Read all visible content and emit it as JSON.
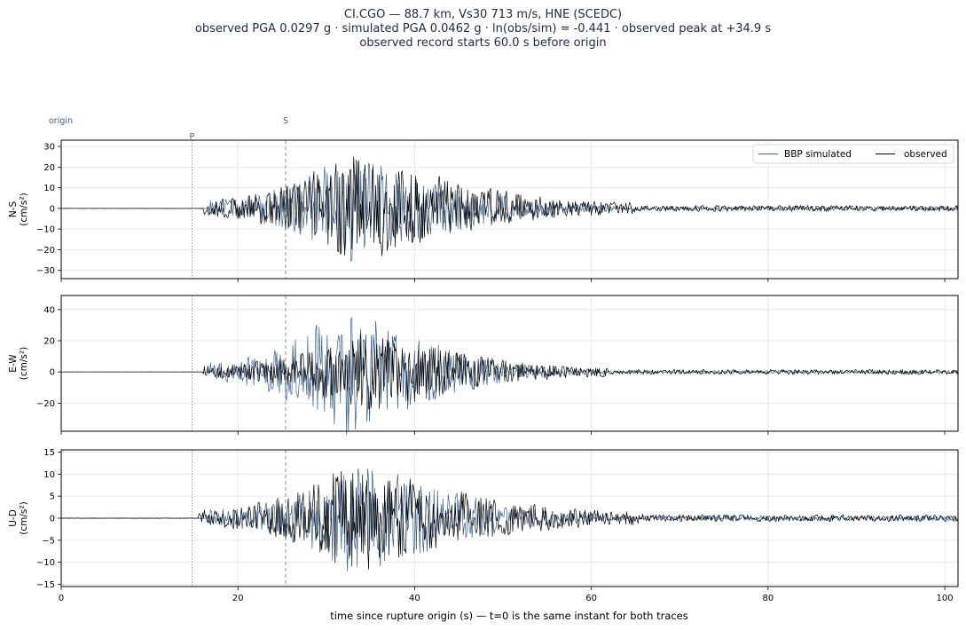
{
  "figure": {
    "title_lines": [
      "CI.CGO  —  88.7 km, Vs30 713 m/s, HNE (SCEDC)",
      "observed PGA 0.0297 g   ·   simulated PGA 0.0462 g   ·   ln(obs/sim) = -0.441   ·   observed peak at +34.9 s",
      "observed record starts 60.0 s before origin"
    ],
    "xlabel": "time since rupture origin (s)   —   t=0 is the same instant for both traces",
    "phase_labels": {
      "origin": "origin",
      "p": "P",
      "s": "S"
    }
  },
  "colors": {
    "simulated": "#3b5f8a",
    "observed": "#000000",
    "grid": "#e4e4e4",
    "marker": "#7a8fb8"
  },
  "chart_data": [
    {
      "type": "line",
      "component": "N-S",
      "ylabel_lines": [
        "N-S",
        "(cm/s²)"
      ],
      "xlim": [
        0,
        101.5
      ],
      "ylim": [
        -34,
        33
      ],
      "xticks": [
        0,
        20,
        40,
        60,
        80,
        100
      ],
      "yticks": [
        -30,
        -20,
        -10,
        0,
        10,
        20,
        30
      ],
      "show_xtick_labels": false,
      "grid": true,
      "legend": "top-right",
      "markers": {
        "origin": 0,
        "p": 14.8,
        "s": 25.4
      },
      "series": [
        {
          "name": "BBP simulated",
          "envelope": {
            "start": 16.5,
            "peak": 32.5,
            "peak_amp": 28,
            "decay": 62,
            "tail_amp": 1.2
          }
        },
        {
          "name": "observed",
          "envelope": {
            "start": 16.0,
            "peak": 33.0,
            "peak_amp": 29,
            "decay": 65,
            "tail_amp": 1.5
          }
        }
      ]
    },
    {
      "type": "line",
      "component": "E-W",
      "ylabel_lines": [
        "E-W",
        "(cm/s²)"
      ],
      "xlim": [
        0,
        101.5
      ],
      "ylim": [
        -38,
        49
      ],
      "xticks": [
        0,
        20,
        40,
        60,
        80,
        100
      ],
      "yticks": [
        -20,
        0,
        20,
        40
      ],
      "show_xtick_labels": false,
      "grid": true,
      "markers": {
        "origin": 0,
        "p": 14.8,
        "s": 25.4
      },
      "series": [
        {
          "name": "BBP simulated",
          "envelope": {
            "start": 16.5,
            "peak": 32.0,
            "peak_amp": 44,
            "decay": 60,
            "tail_amp": 1.2
          }
        },
        {
          "name": "observed",
          "envelope": {
            "start": 16.0,
            "peak": 34.9,
            "peak_amp": 29,
            "decay": 62,
            "tail_amp": 1.6
          }
        }
      ]
    },
    {
      "type": "line",
      "component": "U-D",
      "ylabel_lines": [
        "U-D",
        "(cm/s²)"
      ],
      "xlim": [
        0,
        101.5
      ],
      "ylim": [
        -15.5,
        15.5
      ],
      "xticks": [
        0,
        20,
        40,
        60,
        80,
        100
      ],
      "yticks": [
        -15,
        -10,
        -5,
        0,
        5,
        10,
        15
      ],
      "show_xtick_labels": true,
      "grid": true,
      "markers": {
        "origin": 0,
        "p": 14.8,
        "s": 25.4
      },
      "series": [
        {
          "name": "BBP simulated",
          "envelope": {
            "start": 16.5,
            "peak": 33.5,
            "peak_amp": 14,
            "decay": 62,
            "tail_amp": 0.6
          }
        },
        {
          "name": "observed",
          "envelope": {
            "start": 15.5,
            "peak": 33.0,
            "peak_amp": 13,
            "decay": 66,
            "tail_amp": 0.8
          }
        }
      ]
    }
  ]
}
